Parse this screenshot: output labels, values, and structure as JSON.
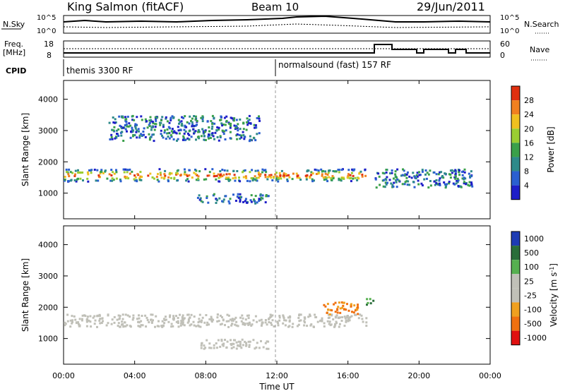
{
  "header": {
    "title": "King Salmon (fitACF)",
    "beam": "Beam 10",
    "date": "29/Jun/2011"
  },
  "noise_panel": {
    "left_label": "N.Sky",
    "right_label": "N.Search",
    "ytick_top": "10^5",
    "ytick_bottom": "10^0"
  },
  "freq_panel": {
    "left_label_1": "Freq.",
    "left_label_2": "[MHz]",
    "right_label": "Nave",
    "left_tick_top": "18",
    "left_tick_bottom": "8",
    "right_tick_top": "60",
    "right_tick_bottom": "0"
  },
  "cpid": {
    "label": "CPID",
    "program_1": "themis 3300 RF",
    "program_2": "normalsound (fast) 157 RF"
  },
  "power_panel": {
    "ylabel": "Slant Range [km]",
    "colorbar_label": "Power [dB]",
    "colorbar_ticks": [
      "28",
      "24",
      "20",
      "16",
      "12",
      "8",
      "4"
    ]
  },
  "velocity_panel": {
    "ylabel": "Slant Range [km]",
    "colorbar_label": "Velocity [m s",
    "colorbar_label_sup": "-1",
    "colorbar_label_end": "]",
    "colorbar_ticks": [
      "1000",
      "500",
      "100",
      "25",
      "-25",
      "-100",
      "-500",
      "-1000"
    ]
  },
  "xaxis": {
    "label": "Time UT",
    "ticks": [
      "00:00",
      "04:00",
      "08:00",
      "12:00",
      "16:00",
      "20:00",
      "00:00"
    ]
  },
  "chart_data": [
    {
      "type": "heatmap",
      "title": "King Salmon (fitACF)",
      "quantity": "Power",
      "xlabel": "Time UT",
      "ylabel": "Slant Range [km]",
      "x_range_hours": [
        0,
        24
      ],
      "ylim_km": [
        180,
        4600
      ],
      "y_ticks": [
        1000,
        2000,
        3000,
        4000
      ],
      "colorbar": {
        "label": "Power [dB]",
        "range": [
          0,
          30
        ],
        "ticks": [
          4,
          8,
          12,
          16,
          20,
          24,
          28
        ]
      },
      "echo_bands": [
        {
          "t_start": 0.0,
          "t_end": 17.0,
          "range_km": [
            1400,
            1800
          ],
          "power_db": "8-28"
        },
        {
          "t_start": 7.5,
          "t_end": 11.5,
          "range_km": [
            700,
            1000
          ],
          "power_db": "4-16"
        },
        {
          "t_start": 17.5,
          "t_end": 23.0,
          "range_km": [
            1200,
            1800
          ],
          "power_db": "4-20"
        },
        {
          "t_start": 2.5,
          "t_end": 11.0,
          "range_km": [
            2700,
            3500
          ],
          "power_db": "4-8"
        }
      ],
      "marker_time": "12:00"
    },
    {
      "type": "heatmap",
      "title": "King Salmon (fitACF)",
      "quantity": "Velocity",
      "xlabel": "Time UT",
      "ylabel": "Slant Range [km]",
      "x_range_hours": [
        0,
        24
      ],
      "ylim_km": [
        180,
        4600
      ],
      "y_ticks": [
        1000,
        2000,
        3000,
        4000
      ],
      "colorbar": {
        "label": "Velocity [m s-1]",
        "range": [
          -1000,
          1000
        ],
        "ticks": [
          1000,
          500,
          100,
          25,
          -25,
          -100,
          -500,
          -1000
        ]
      },
      "echo_bands": [
        {
          "t_start": 0.0,
          "t_end": 17.0,
          "range_km": [
            1400,
            1800
          ],
          "velocity": "-25 to 25"
        },
        {
          "t_start": 7.5,
          "t_end": 11.5,
          "range_km": [
            700,
            1000
          ],
          "velocity": "-25 to 25"
        },
        {
          "t_start": 14.5,
          "t_end": 16.5,
          "range_km": [
            1800,
            2200
          ],
          "velocity": "-100 to -500"
        },
        {
          "t_start": 17.0,
          "t_end": 17.5,
          "range_km": [
            2100,
            2300
          ],
          "velocity": "100 to 500"
        }
      ],
      "marker_time": "12:00"
    }
  ]
}
